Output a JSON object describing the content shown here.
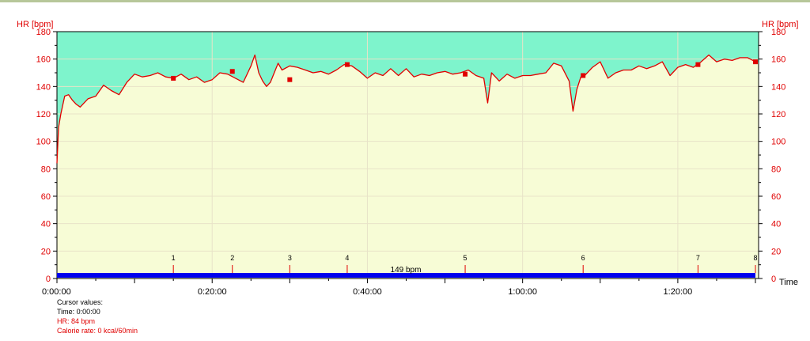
{
  "chart_data": {
    "type": "line",
    "ylabel_left": "HR [bpm]",
    "ylabel_right": "HR [bpm]",
    "xlabel": "Time",
    "ylim": [
      0,
      180
    ],
    "yticks": [
      0,
      20,
      40,
      60,
      80,
      100,
      120,
      140,
      160,
      180
    ],
    "xlim_minutes": [
      0,
      90
    ],
    "xticks": [
      "0:00:00",
      "0:20:00",
      "0:40:00",
      "1:00:00",
      "1:20:00"
    ],
    "xtick_minutes": [
      0,
      20,
      40,
      60,
      80
    ],
    "upper_zone_from_bpm": 140,
    "colors": {
      "upper_zone": "#7ef4cc",
      "lower_zone": "#f7fcd6",
      "hr_line": "#e00000",
      "duration_bar": "#0000ee",
      "axis_text_red": "#e00000"
    },
    "average_label": "149 bpm",
    "laps": [
      {
        "label": "1",
        "minute": 15.0,
        "hr": 146
      },
      {
        "label": "2",
        "minute": 22.6,
        "hr": 151
      },
      {
        "label": "3",
        "minute": 30.0,
        "hr": 145
      },
      {
        "label": "4",
        "minute": 37.4,
        "hr": 156
      },
      {
        "label": "5",
        "minute": 52.6,
        "hr": 149
      },
      {
        "label": "6",
        "minute": 67.8,
        "hr": 148
      },
      {
        "label": "7",
        "minute": 82.6,
        "hr": 156
      },
      {
        "label": "8",
        "minute": 90.0,
        "hr": 158
      }
    ],
    "series": [
      {
        "x_minutes": [
          0,
          0.2,
          0.5,
          1.0,
          1.5,
          2.0,
          2.5,
          3.0,
          3.5,
          4.0,
          5.0,
          6.0,
          7.0,
          8.0,
          9.0,
          10.0,
          11.0,
          12.0,
          13.0,
          14.0,
          15.0,
          16.0,
          17.0,
          18.0,
          19.0,
          20.0,
          21.0,
          22.0,
          23.0,
          24.0,
          25.0,
          25.5,
          26.0,
          26.5,
          27.0,
          27.5,
          28.0,
          28.5,
          29.0,
          30.0,
          31.0,
          32.0,
          33.0,
          34.0,
          35.0,
          36.0,
          37.0,
          38.0,
          39.0,
          40.0,
          41.0,
          42.0,
          43.0,
          44.0,
          45.0,
          46.0,
          47.0,
          48.0,
          49.0,
          50.0,
          51.0,
          52.0,
          53.0,
          54.0,
          55.0,
          55.5,
          56.0,
          56.5,
          57.0,
          58.0,
          59.0,
          60.0,
          61.0,
          62.0,
          63.0,
          64.0,
          65.0,
          66.0,
          66.5,
          67.0,
          67.5,
          68.0,
          69.0,
          70.0,
          71.0,
          72.0,
          73.0,
          74.0,
          75.0,
          76.0,
          77.0,
          78.0,
          79.0,
          80.0,
          81.0,
          82.0,
          83.0,
          84.0,
          85.0,
          86.0,
          87.0,
          88.0,
          89.0,
          90.0
        ],
        "y_bpm": [
          84,
          110,
          120,
          133,
          134,
          130,
          127,
          125,
          128,
          131,
          133,
          141,
          137,
          134,
          143,
          149,
          147,
          148,
          150,
          147,
          146,
          149,
          145,
          147,
          143,
          145,
          150,
          149,
          146,
          143,
          155,
          163,
          150,
          144,
          140,
          143,
          150,
          157,
          152,
          155,
          154,
          152,
          150,
          151,
          149,
          152,
          156,
          155,
          151,
          146,
          150,
          148,
          153,
          148,
          153,
          147,
          149,
          148,
          150,
          151,
          149,
          150,
          152,
          148,
          146,
          128,
          150,
          147,
          144,
          149,
          146,
          148,
          148,
          149,
          150,
          157,
          155,
          144,
          122,
          138,
          147,
          148,
          154,
          158,
          146,
          150,
          152,
          152,
          155,
          153,
          155,
          158,
          148,
          154,
          156,
          154,
          158,
          163,
          158,
          160,
          159,
          161,
          161,
          158
        ]
      }
    ]
  },
  "cursor": {
    "heading": "Cursor values:",
    "time": "Time: 0:00:00",
    "hr": "HR: 84 bpm",
    "calorie": "Calorie rate: 0 kcal/60min"
  }
}
